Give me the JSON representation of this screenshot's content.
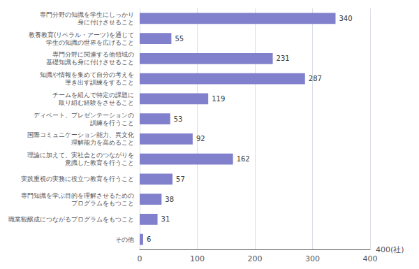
{
  "chart_data": {
    "type": "bar",
    "orientation": "horizontal",
    "categories": [
      "専門分野の知識を学生にしっかり\n身に付けさせること",
      "教養教育(リベラル・アーツ)を通じて\n学生の知識の世界を広げること",
      "専門分野に関連する他領域の\n基礎知識も身に付けさせること",
      "知識や情報を集めて自分の考えを\n導き出す訓練をすること",
      "チームを組んで特定の課題に\n取り組む経験をさせること",
      "ディベート、プレゼンテーションの\n訓練を行うこと",
      "国際コミュニケーション能力、異文化\n理解能力を高めること",
      "理論に加えて、実社会とのつながりを\n意識した教育を行うこと",
      "実践重視の実務に役立つ教育を行うこと",
      "専門知識を学ぶ目的を理解させるための\nプログラムをもつこと",
      "職業観醸成につながるプログラムをもつこと",
      "その他"
    ],
    "values": [
      340,
      55,
      231,
      287,
      119,
      53,
      92,
      162,
      57,
      38,
      31,
      6
    ],
    "color": "#8080cc",
    "xlabel": "400(社)",
    "xlim": [
      0,
      400
    ],
    "xticks": [
      0,
      100,
      200,
      300,
      400
    ],
    "grid": true,
    "data_labels": true
  }
}
